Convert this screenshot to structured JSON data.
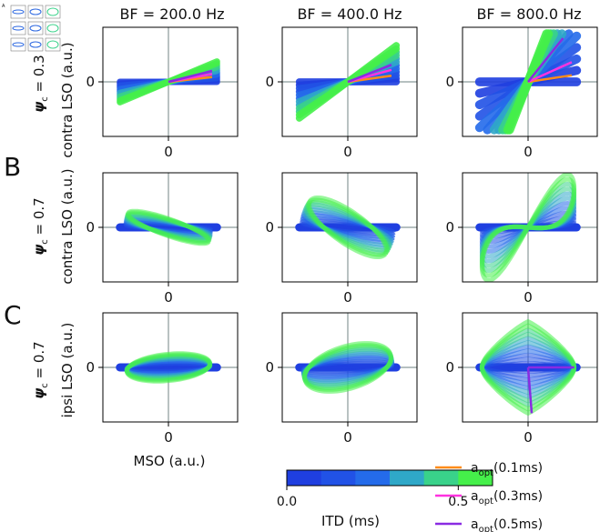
{
  "figure": {
    "panel_letters": [
      "B",
      "C"
    ],
    "thumbnail_label": "A"
  },
  "chart_data": {
    "type": "scatter",
    "columns": [
      "BF = 200.0 Hz",
      "BF = 400.0 Hz",
      "BF = 800.0 Hz"
    ],
    "rows": [
      {
        "psi_label": "ψ",
        "psi_sub": "c",
        "psi_value": " = 0.3",
        "ylabel": "contra LSO (a.u.)"
      },
      {
        "psi_label": "ψ",
        "psi_sub": "c",
        "psi_value": " = 0.7",
        "ylabel": "contra LSO (a.u.)"
      },
      {
        "psi_label": "ψ",
        "psi_sub": "c",
        "psi_value": " = 0.7",
        "ylabel": "ipsi LSO (a.u.)"
      }
    ],
    "xlabel": "MSO (a.u.)",
    "x_tick_label": "0",
    "y_tick_label": "0",
    "colorbar": {
      "label": "ITD (ms)",
      "ticks": [
        "0.0",
        "0.5"
      ],
      "tick_values": [
        0.0,
        0.5
      ],
      "range": [
        0.0,
        0.6
      ],
      "bins": [
        {
          "from": 0.0,
          "to": 0.1,
          "color": "#1f3fe0"
        },
        {
          "from": 0.1,
          "to": 0.2,
          "color": "#2152e6"
        },
        {
          "from": 0.2,
          "to": 0.3,
          "color": "#246bea"
        },
        {
          "from": 0.3,
          "to": 0.4,
          "color": "#2fa8c8"
        },
        {
          "from": 0.4,
          "to": 0.5,
          "color": "#39d28a"
        },
        {
          "from": 0.5,
          "to": 0.6,
          "color": "#45f04a"
        }
      ]
    },
    "legend": [
      {
        "name": "a",
        "sub": "opt",
        "suffix": "(0.1ms)",
        "color": "#ff8c1a"
      },
      {
        "name": "a",
        "sub": "opt",
        "suffix": "(0.3ms)",
        "color": "#ff33e0"
      },
      {
        "name": "a",
        "sub": "opt",
        "suffix": "(0.5ms)",
        "color": "#8a2be2"
      }
    ],
    "panels": [
      {
        "row": 0,
        "col": 0,
        "kind": "lines",
        "slope": 0.42,
        "thick": 1.0,
        "opt": [
          0.22,
          0.36,
          0.5
        ]
      },
      {
        "row": 0,
        "col": 1,
        "kind": "lines",
        "slope": 0.75,
        "thick": 1.1,
        "opt": [
          0.28,
          0.55,
          0.78
        ]
      },
      {
        "row": 0,
        "col": 2,
        "kind": "lines",
        "slope": 2.6,
        "thick": 1.4,
        "opt": [
          0.3,
          0.9,
          2.5
        ]
      },
      {
        "row": 1,
        "col": 0,
        "kind": "ellipse",
        "tilt": -0.34,
        "ra": 0.88,
        "rb": 0.14,
        "opt": []
      },
      {
        "row": 1,
        "col": 1,
        "kind": "ellipse",
        "tilt": -0.62,
        "ra": 0.95,
        "rb": 0.3,
        "opt": []
      },
      {
        "row": 1,
        "col": 2,
        "kind": "bowtie",
        "tilt": -1.1,
        "ra": 0.95,
        "rb": 0.55,
        "opt": []
      },
      {
        "row": 2,
        "col": 0,
        "kind": "ellipse",
        "tilt": 0.1,
        "ra": 0.86,
        "rb": 0.25,
        "opt": []
      },
      {
        "row": 2,
        "col": 1,
        "kind": "ellipse",
        "tilt": 0.3,
        "ra": 0.92,
        "rb": 0.42,
        "opt": []
      },
      {
        "row": 2,
        "col": 2,
        "kind": "diamond",
        "tilt": 0.0,
        "ra": 0.95,
        "rb": 0.9,
        "opt": [
          -6.0
        ]
      }
    ]
  }
}
